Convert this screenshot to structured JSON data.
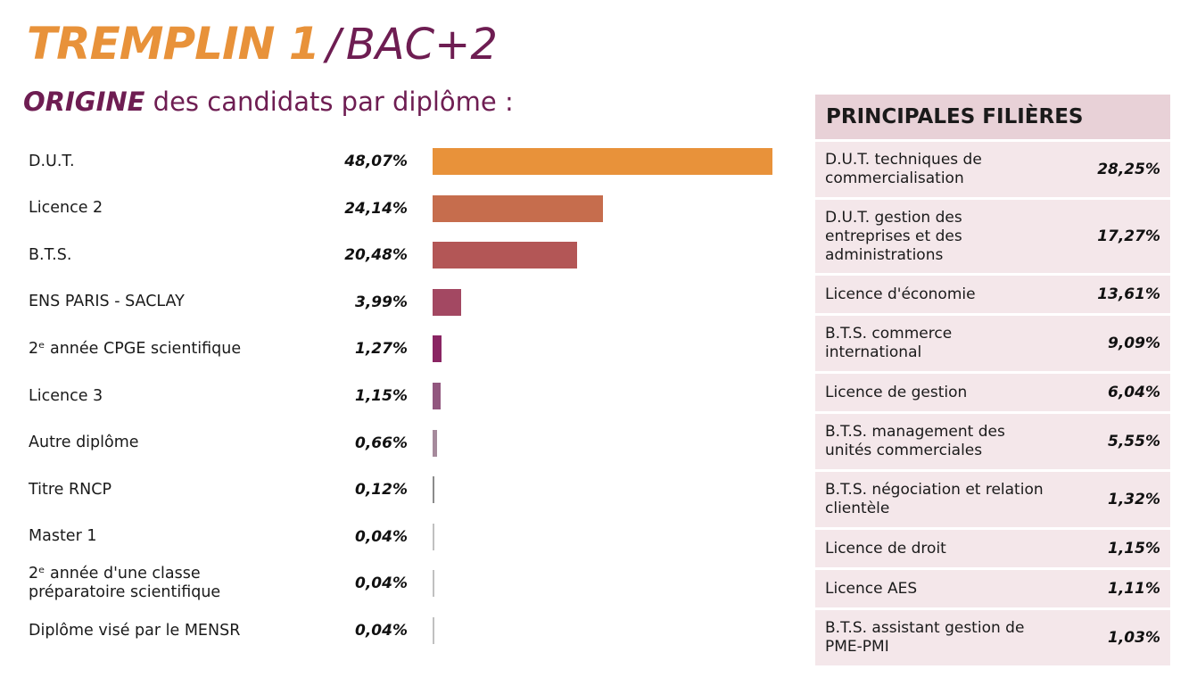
{
  "title": {
    "main": "TREMPLIN 1",
    "slash": "/",
    "sub": "BAC+2"
  },
  "subtitle": {
    "strong": "ORIGINE",
    "rest": " des candidats par diplôme :"
  },
  "chart_data": {
    "type": "bar",
    "orientation": "horizontal",
    "categories": [
      "D.U.T.",
      "Licence 2",
      "B.T.S.",
      "ENS PARIS - SACLAY",
      "2ᵉ année CPGE scientifique",
      "Licence 3",
      "Autre diplôme",
      "Titre RNCP",
      "Master 1",
      "2ᵉ année d'une classe\npréparatoire scientifique",
      "Diplôme visé par le MENSR"
    ],
    "values": [
      48.07,
      24.14,
      20.48,
      3.99,
      1.27,
      1.15,
      0.66,
      0.12,
      0.04,
      0.04,
      0.04
    ],
    "value_labels": [
      "48,07%",
      "24,14%",
      "20,48%",
      "3,99%",
      "1,27%",
      "1,15%",
      "0,66%",
      "0,12%",
      "0,04%",
      "0,04%",
      "0,04%"
    ],
    "bar_colors": [
      "#e8923a",
      "#c66d4d",
      "#b35656",
      "#a34862",
      "#8a2563",
      "#92577f",
      "#a68a9c",
      "#8b8b8b",
      "#c0c0c0",
      "#c0c0c0",
      "#c0c0c0"
    ],
    "title": "",
    "xlabel": "",
    "ylabel": "",
    "xlim": [
      0,
      48.07
    ],
    "grid": false,
    "legend": false
  },
  "filieres": {
    "title": "PRINCIPALES FILIÈRES",
    "rows": [
      {
        "label": "D.U.T. techniques de\ncommercialisation",
        "value": "28,25%"
      },
      {
        "label": "D.U.T. gestion des\nentreprises et des\nadministrations",
        "value": "17,27%"
      },
      {
        "label": "Licence d'économie",
        "value": "13,61%"
      },
      {
        "label": "B.T.S. commerce\ninternational",
        "value": "9,09%"
      },
      {
        "label": "Licence de gestion",
        "value": "6,04%"
      },
      {
        "label": "B.T.S. management des\nunités commerciales",
        "value": "5,55%"
      },
      {
        "label": "B.T.S. négociation et relation\nclientèle",
        "value": "1,32%"
      },
      {
        "label": "Licence de droit",
        "value": "1,15%"
      },
      {
        "label": "Licence AES",
        "value": "1,11%"
      },
      {
        "label": "B.T.S. assistant gestion de\nPME-PMI",
        "value": "1,03%"
      }
    ]
  },
  "colors": {
    "accent_orange": "#e8923a",
    "accent_plum": "#6e1d52",
    "table_header_bg": "#e8d1d7",
    "table_row_bg": "#f4e7ea"
  }
}
